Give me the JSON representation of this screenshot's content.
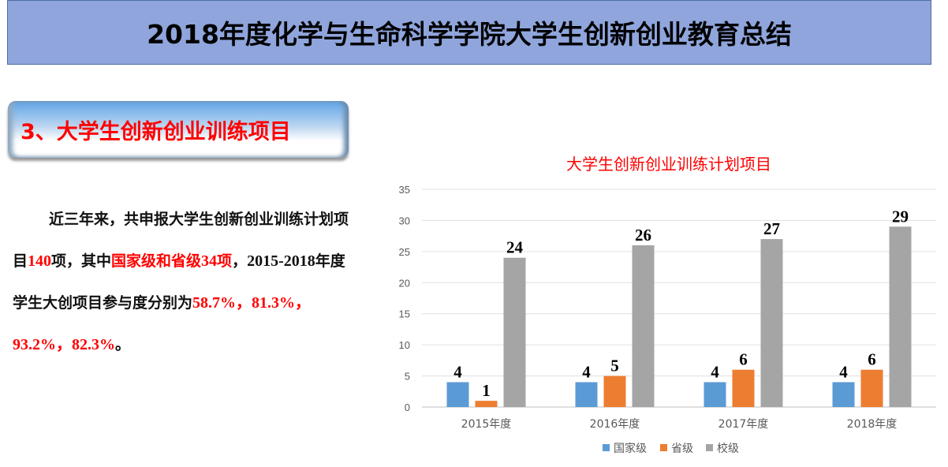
{
  "header": {
    "title": "2018年度化学与生命科学学院大学生创新创业教育总结"
  },
  "section": {
    "heading": "3、大学生创新创业训练项目"
  },
  "summary": {
    "segments": [
      {
        "text": "近三年来，共申报大学生创新创业训练计划项目",
        "red": false
      },
      {
        "text": "140",
        "red": true,
        "num": true
      },
      {
        "text": "项，其中",
        "red": false
      },
      {
        "text": "国家级和省级",
        "red": true
      },
      {
        "text": "34",
        "red": true,
        "num": true
      },
      {
        "text": "项",
        "red": true
      },
      {
        "text": "，",
        "red": false
      },
      {
        "text": "2015-2018",
        "red": false,
        "num": true
      },
      {
        "text": "年度学生大创项目参与度分别为",
        "red": false
      },
      {
        "text": "58.7%，81.3%，93.2%，82.3%",
        "red": true,
        "num": true
      },
      {
        "text": "。",
        "red": false
      }
    ]
  },
  "chart_data": {
    "type": "bar",
    "title": "大学生创新创业训练计划项目",
    "categories": [
      "2015年度",
      "2016年度",
      "2017年度",
      "2018年度"
    ],
    "series": [
      {
        "name": "国家级",
        "values": [
          4,
          4,
          4,
          4
        ],
        "color": "#5b9bd5"
      },
      {
        "name": "省级",
        "values": [
          1,
          5,
          6,
          6
        ],
        "color": "#ed7d31"
      },
      {
        "name": "校级",
        "values": [
          24,
          26,
          27,
          29
        ],
        "color": "#a5a5a5"
      }
    ],
    "ylim": [
      0,
      35
    ],
    "yticks": [
      0,
      5,
      10,
      15,
      20,
      25,
      30,
      35
    ],
    "grid": true,
    "legend": "bottom",
    "title_color": "#ff0000"
  }
}
